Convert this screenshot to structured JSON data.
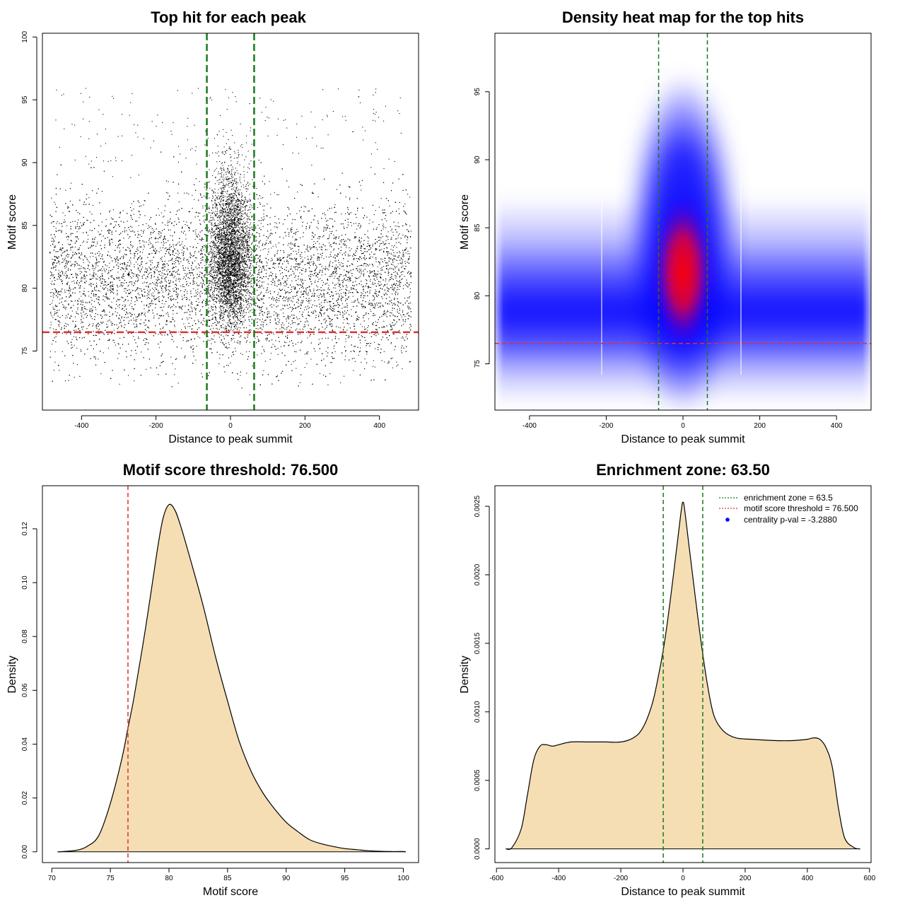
{
  "colors": {
    "axis": "#000000",
    "threshold_line": "#e03030",
    "zone_line": "#1a7a1a",
    "density_fill": "#f5deb3",
    "heat_low": "#ffffff",
    "heat_mid": "#0000ff",
    "heat_high": "#ff0000"
  },
  "chart_data": [
    {
      "type": "scatter",
      "title": "Top hit for each peak",
      "xlabel": "Distance to peak summit",
      "ylabel": "Motif score",
      "xlim": [
        -505,
        505
      ],
      "ylim": [
        70.3,
        100.3
      ],
      "xticks": [
        -400,
        -200,
        0,
        200,
        400
      ],
      "yticks": [
        75,
        80,
        85,
        90,
        95,
        100
      ],
      "background_sd_note": "dense uniform background over x in [-480,480], y ~ N(80.5, 3.0); central enriched cluster x ~ N(0,28), y ~ N(82.5, 4.0)",
      "threshold_y": 76.5,
      "zone_x": [
        -63.5,
        63.5
      ]
    },
    {
      "type": "heatmap",
      "title": "Density heat map for the top hits",
      "xlabel": "Distance to peak summit",
      "ylabel": "Motif score",
      "xlim": [
        -490,
        490
      ],
      "ylim": [
        71.6,
        99.3
      ],
      "xticks": [
        -400,
        -200,
        0,
        200,
        400
      ],
      "yticks": [
        75,
        80,
        85,
        90,
        95
      ],
      "peak": {
        "x": 0,
        "y": 80.5
      },
      "threshold_y": 76.5,
      "zone_x": [
        -63.5,
        63.5
      ],
      "tile_edges_x": [
        -210,
        155
      ]
    },
    {
      "type": "area",
      "title": "Motif score threshold: 76.500",
      "xlabel": "Motif score",
      "ylabel": "Density",
      "xlim": [
        69.2,
        101.3
      ],
      "ylim": [
        -0.004,
        0.136
      ],
      "xticks": [
        70,
        75,
        80,
        85,
        90,
        95,
        100
      ],
      "yticks": [
        0.0,
        0.02,
        0.04,
        0.06,
        0.08,
        0.1,
        0.12
      ],
      "ytick_labels": [
        "0.00",
        "0.02",
        "0.04",
        "0.06",
        "0.08",
        "0.10",
        "0.12"
      ],
      "x": [
        70.5,
        72,
        73,
        74,
        75,
        76,
        76.5,
        77,
        78,
        79,
        79.5,
        80,
        80.5,
        81,
        82,
        83,
        84,
        85,
        86,
        87,
        88,
        89,
        90,
        91,
        92,
        93,
        94,
        95,
        96,
        97,
        98,
        99,
        100,
        100.2
      ],
      "y": [
        0,
        0.0005,
        0.002,
        0.006,
        0.018,
        0.035,
        0.046,
        0.057,
        0.083,
        0.112,
        0.124,
        0.129,
        0.127,
        0.121,
        0.106,
        0.09,
        0.072,
        0.056,
        0.041,
        0.03,
        0.022,
        0.016,
        0.011,
        0.0075,
        0.0045,
        0.003,
        0.002,
        0.0012,
        0.0008,
        0.0004,
        0.0002,
        0.0001,
        0.0001,
        0
      ],
      "threshold_x": 76.5
    },
    {
      "type": "area",
      "title": "Enrichment zone: 63.50",
      "xlabel": "Distance to peak summit",
      "ylabel": "Density",
      "xlim": [
        -605,
        605
      ],
      "ylim": [
        -0.0001,
        0.00265
      ],
      "xticks": [
        -600,
        -400,
        -200,
        0,
        200,
        400,
        600
      ],
      "yticks": [
        0,
        0.0005,
        0.001,
        0.0015,
        0.002,
        0.0025
      ],
      "ytick_labels": [
        "0.0000",
        "0.0005",
        "0.0010",
        "0.0015",
        "0.0020",
        "0.0025"
      ],
      "x": [
        -570,
        -550,
        -520,
        -500,
        -480,
        -460,
        -440,
        -420,
        -400,
        -360,
        -300,
        -250,
        -200,
        -160,
        -130,
        -100,
        -80,
        -60,
        -40,
        -20,
        -5,
        0,
        5,
        20,
        40,
        60,
        80,
        100,
        130,
        170,
        220,
        300,
        350,
        400,
        420,
        440,
        460,
        480,
        500,
        520,
        550,
        570
      ],
      "y": [
        0,
        1e-05,
        0.00015,
        0.0004,
        0.00065,
        0.00075,
        0.00076,
        0.00075,
        0.00076,
        0.00078,
        0.00078,
        0.00078,
        0.00078,
        0.00081,
        0.00088,
        0.00105,
        0.00125,
        0.0015,
        0.00183,
        0.0022,
        0.00248,
        0.00253,
        0.00248,
        0.0022,
        0.00183,
        0.00148,
        0.00118,
        0.00097,
        0.00086,
        0.00081,
        0.0008,
        0.00079,
        0.00079,
        0.0008,
        0.00081,
        0.0008,
        0.00074,
        0.0006,
        0.0003,
        8e-05,
        1e-05,
        0
      ],
      "zone_x": [
        -63.5,
        63.5
      ],
      "legend": [
        {
          "label": "enrichment zone = 63.5",
          "style": "dotted-green"
        },
        {
          "label": "motif score threshold = 76.500",
          "style": "dotted-red"
        },
        {
          "label": "centrality p-val = -3.2880",
          "style": "blue-dot"
        }
      ],
      "legend_position": "top-right"
    }
  ]
}
